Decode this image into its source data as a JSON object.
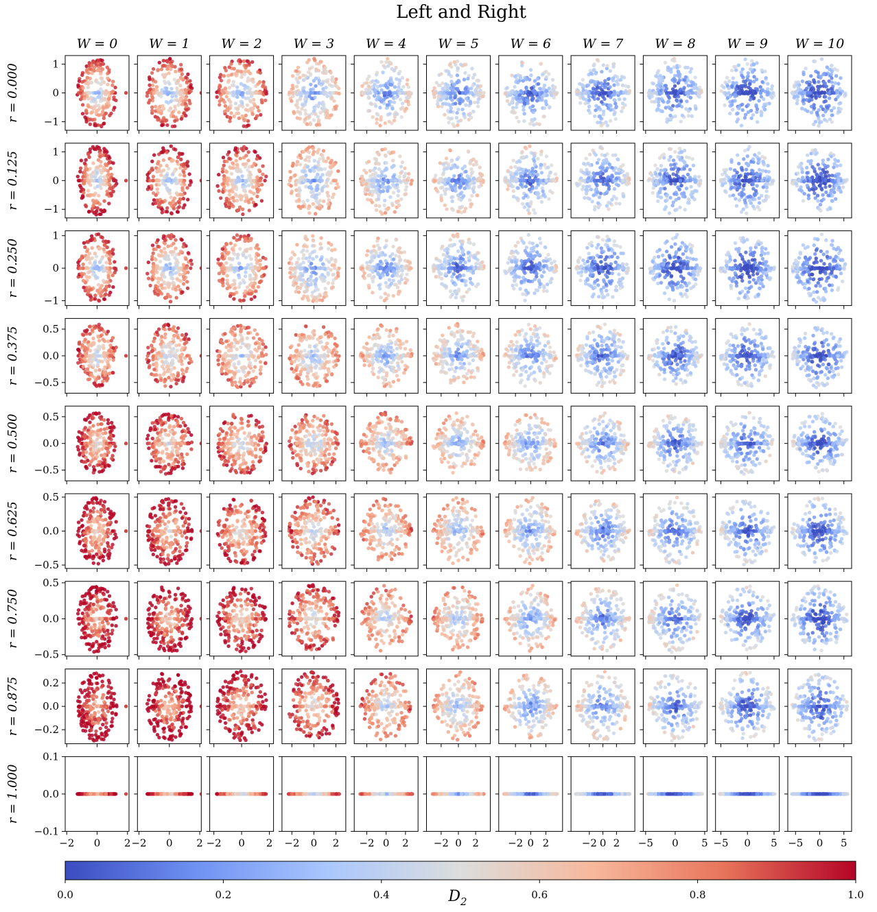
{
  "chart_data": {
    "type": "scatter",
    "title": "Left and Right",
    "columns": [
      "W = 0",
      "W = 1",
      "W = 2",
      "W = 3",
      "W = 4",
      "W = 5",
      "W = 6",
      "W = 7",
      "W = 8",
      "W = 9",
      "W = 10"
    ],
    "rows": [
      "r = 0.000",
      "r = 0.125",
      "r = 0.250",
      "r = 0.375",
      "r = 0.500",
      "r = 0.625",
      "r = 0.750",
      "r = 0.875",
      "r = 1.000"
    ],
    "r_values": [
      0.0,
      0.125,
      0.25,
      0.375,
      0.5,
      0.625,
      0.75,
      0.875,
      1.0
    ],
    "W_values": [
      0,
      1,
      2,
      3,
      4,
      5,
      6,
      7,
      8,
      9,
      10
    ],
    "xlim_per_column": [
      [
        -2.1,
        2.1
      ],
      [
        -2.1,
        2.1
      ],
      [
        -2.3,
        2.3
      ],
      [
        -2.9,
        2.9
      ],
      [
        -3.3,
        3.3
      ],
      [
        -3.7,
        3.7
      ],
      [
        -4.2,
        4.2
      ],
      [
        -4.7,
        4.7
      ],
      [
        -5.4,
        5.4
      ],
      [
        -6.0,
        6.0
      ],
      [
        -6.6,
        6.6
      ]
    ],
    "x_ticks_per_column": [
      [
        -2,
        0,
        2
      ],
      [
        -2,
        0,
        2
      ],
      [
        -2,
        0,
        2
      ],
      [
        -2,
        0,
        2
      ],
      [
        -2,
        0,
        2
      ],
      [
        -2,
        0,
        2
      ],
      [
        -2,
        0,
        2
      ],
      [
        -2,
        0,
        2
      ],
      [
        -5,
        0,
        5
      ],
      [
        -5,
        0,
        5
      ],
      [
        -5,
        0,
        5
      ]
    ],
    "x_tick_labels_per_column": [
      [
        "−2",
        "0",
        "2"
      ],
      [
        "−2",
        "0",
        "2"
      ],
      [
        "−2",
        "0",
        "2"
      ],
      [
        "−2",
        "0",
        "2"
      ],
      [
        "−2",
        "0",
        "2"
      ],
      [
        "−2",
        "0",
        "2"
      ],
      [
        "−2",
        "0",
        "2"
      ],
      [
        "−2",
        "0",
        "2"
      ],
      [
        "−5",
        "0",
        "5"
      ],
      [
        "−5",
        "0",
        "5"
      ],
      [
        "−5",
        "0",
        "5"
      ]
    ],
    "ylim_per_row": [
      [
        -1.3,
        1.3
      ],
      [
        -1.3,
        1.3
      ],
      [
        -1.15,
        1.15
      ],
      [
        -0.7,
        0.7
      ],
      [
        -0.7,
        0.7
      ],
      [
        -0.55,
        0.55
      ],
      [
        -0.52,
        0.52
      ],
      [
        -0.32,
        0.32
      ],
      [
        -0.1,
        0.1
      ]
    ],
    "y_ticks_per_row": [
      [
        1,
        0,
        -1
      ],
      [
        1,
        0,
        -1
      ],
      [
        1,
        0,
        -1
      ],
      [
        0.5,
        0.0,
        -0.5
      ],
      [
        0.5,
        0.0,
        -0.5
      ],
      [
        0.5,
        0.0,
        -0.5
      ],
      [
        0.5,
        0.0,
        -0.5
      ],
      [
        0.2,
        0.0,
        -0.2
      ],
      [
        0.1,
        0.0,
        -0.1
      ]
    ],
    "y_tick_labels_per_row": [
      [
        "1",
        "0",
        "−1"
      ],
      [
        "1",
        "0",
        "−1"
      ],
      [
        "1",
        "0",
        "−1"
      ],
      [
        "0.5",
        "0.0",
        "−0.5"
      ],
      [
        "0.5",
        "0.0",
        "−0.5"
      ],
      [
        "0.5",
        "0.0",
        "−0.5"
      ],
      [
        "0.5",
        "0.0",
        "−0.5"
      ],
      [
        "0.2",
        "0.0",
        "−0.2"
      ],
      [
        "0.1",
        "0.0",
        "−0.1"
      ]
    ],
    "cloud_extent": {
      "x_halfwidth_by_column": [
        1.3,
        1.5,
        1.8,
        2.3,
        2.7,
        3.0,
        3.5,
        4.0,
        4.6,
        5.2,
        5.8
      ],
      "y_halfheight_by_row": [
        1.2,
        1.2,
        1.05,
        0.6,
        0.58,
        0.5,
        0.47,
        0.3,
        0.0
      ]
    },
    "color_mean_D2": [
      [
        0.55,
        0.52,
        0.5,
        0.45,
        0.4,
        0.35,
        0.3,
        0.27,
        0.25,
        0.22,
        0.2
      ],
      [
        0.6,
        0.58,
        0.55,
        0.5,
        0.46,
        0.4,
        0.35,
        0.3,
        0.26,
        0.24,
        0.22
      ],
      [
        0.55,
        0.52,
        0.48,
        0.45,
        0.42,
        0.35,
        0.3,
        0.25,
        0.22,
        0.2,
        0.18
      ],
      [
        0.7,
        0.68,
        0.62,
        0.58,
        0.5,
        0.45,
        0.38,
        0.33,
        0.28,
        0.25,
        0.22
      ],
      [
        0.8,
        0.76,
        0.72,
        0.66,
        0.6,
        0.52,
        0.45,
        0.38,
        0.32,
        0.28,
        0.25
      ],
      [
        0.85,
        0.82,
        0.76,
        0.7,
        0.62,
        0.55,
        0.46,
        0.38,
        0.32,
        0.28,
        0.25
      ],
      [
        0.88,
        0.86,
        0.82,
        0.74,
        0.65,
        0.58,
        0.48,
        0.38,
        0.32,
        0.26,
        0.22
      ],
      [
        0.92,
        0.9,
        0.85,
        0.78,
        0.66,
        0.56,
        0.45,
        0.38,
        0.32,
        0.28,
        0.25
      ],
      [
        0.9,
        0.88,
        0.75,
        0.7,
        0.62,
        0.52,
        0.35,
        0.28,
        0.24,
        0.22,
        0.2
      ]
    ],
    "colorbar": {
      "label": "D2",
      "label_main": "D",
      "label_sub": "2",
      "colormap": "coolwarm",
      "range": [
        0.0,
        1.0
      ],
      "ticks": [
        "0.0",
        "0.2",
        "0.4",
        "0.6",
        "0.8",
        "1.0"
      ],
      "colors": [
        "#3b4cc0",
        "#6f92f3",
        "#aac7fd",
        "#dcdddd",
        "#f7b89c",
        "#e7745b",
        "#b40426"
      ]
    }
  }
}
